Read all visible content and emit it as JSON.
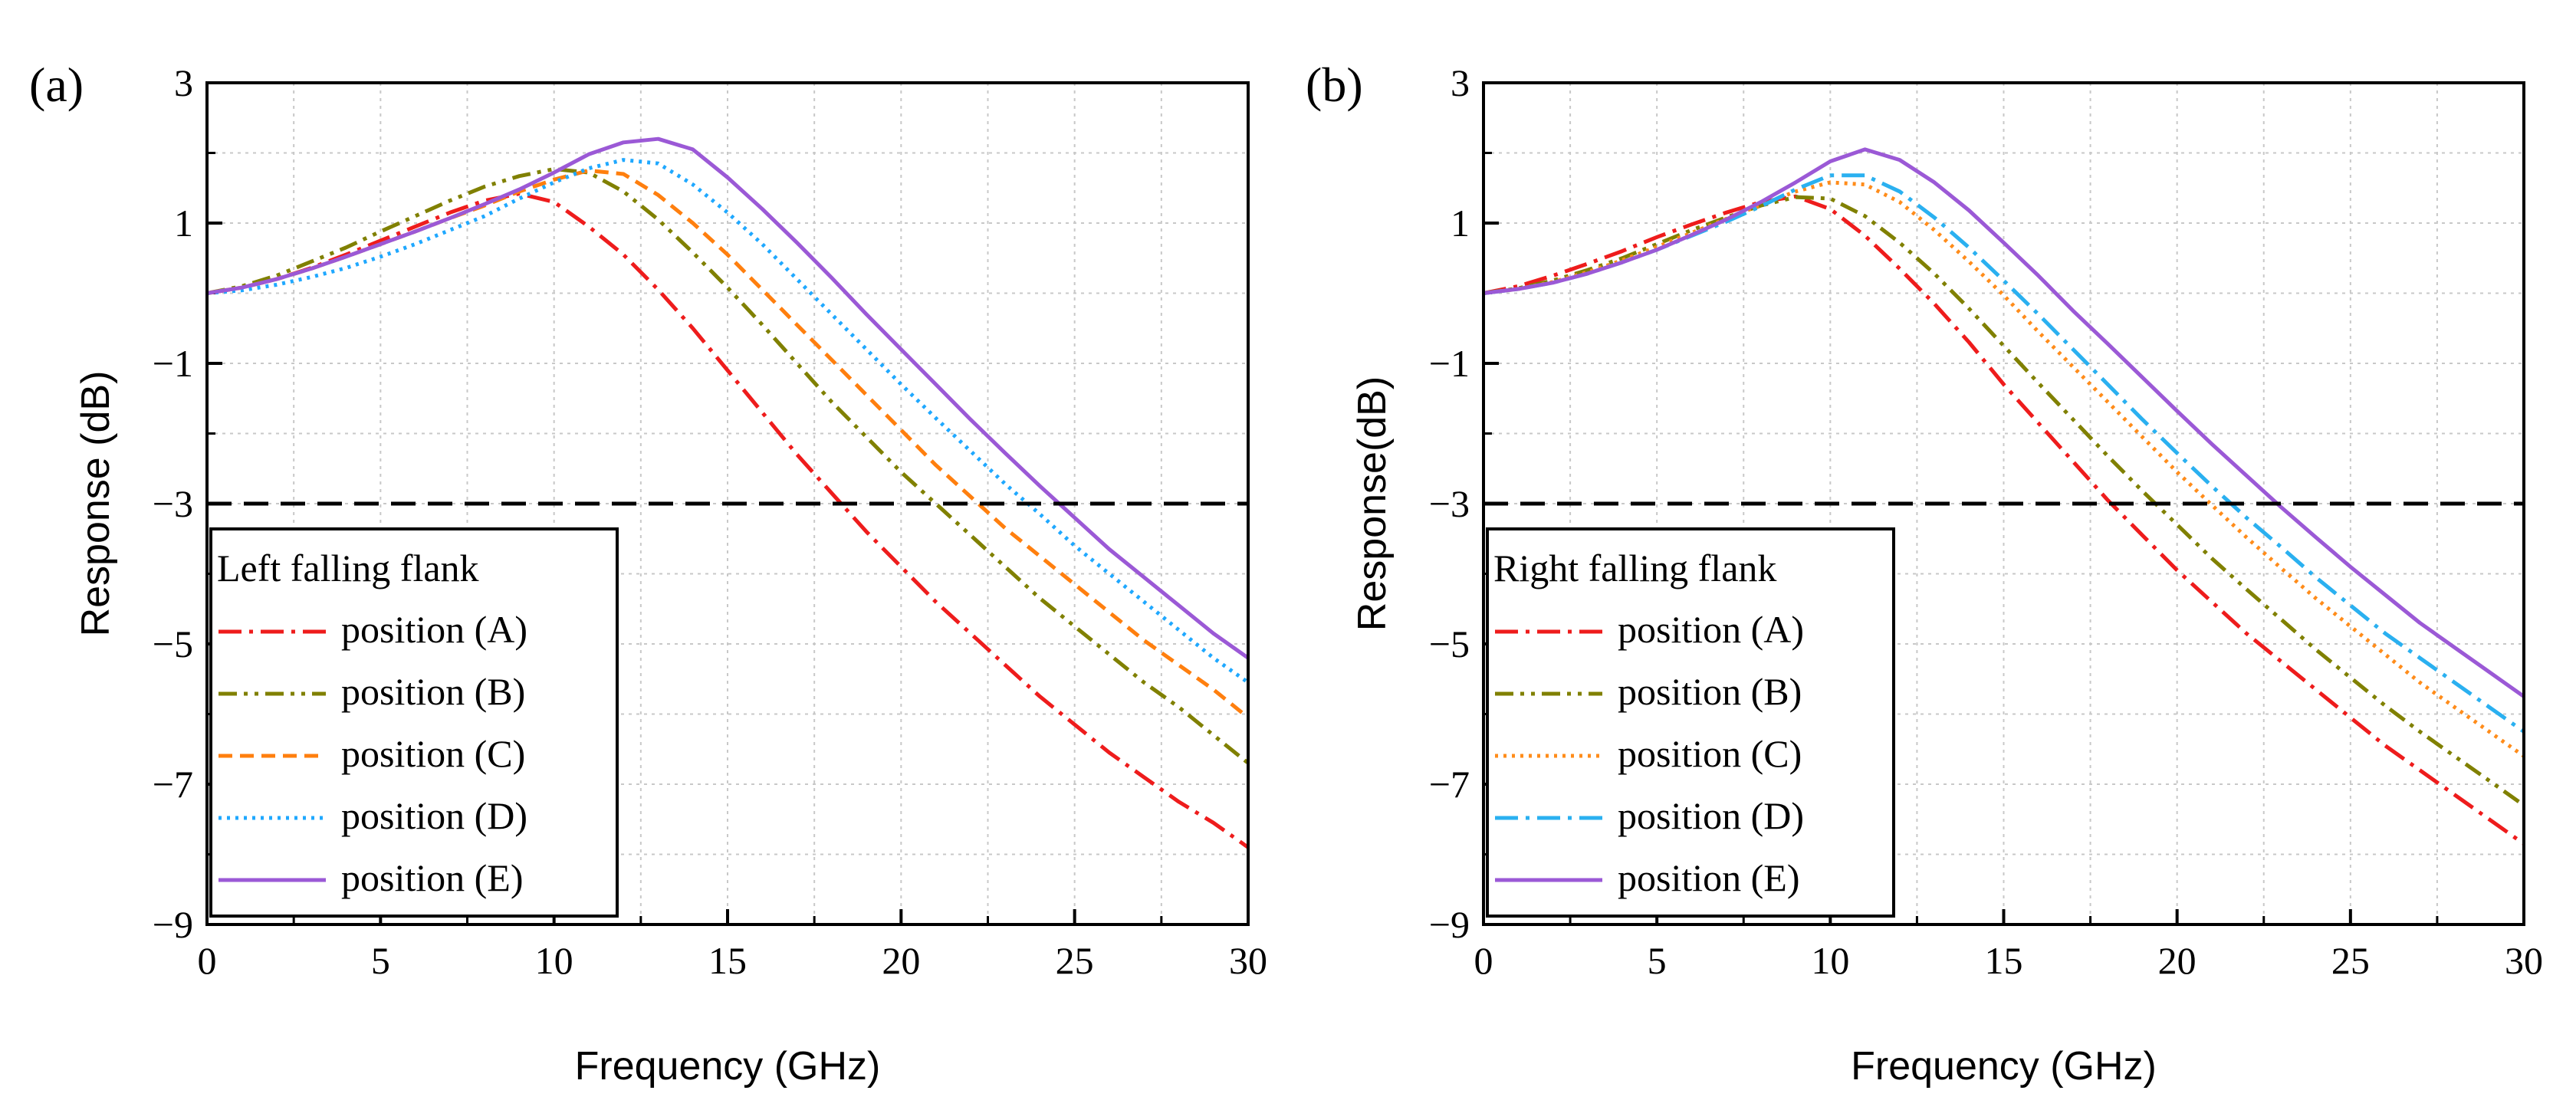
{
  "chart_data": [
    {
      "type": "line",
      "panel_label": "(a)",
      "xlabel": "Frequency (GHz)",
      "ylabel": "Response (dB)",
      "xlim": [
        0,
        30
      ],
      "ylim": [
        -9,
        3
      ],
      "xticks": [
        "0",
        "5",
        "10",
        "15",
        "20",
        "25",
        "30"
      ],
      "yticks": [
        "3",
        "1",
        "−1",
        "−3",
        "−5",
        "−7",
        "−9"
      ],
      "grid": true,
      "reference_line": {
        "y": -3,
        "style": "dashed",
        "color": "#000000"
      },
      "legend": {
        "title": "Left falling flank",
        "placement": "bottom-left"
      },
      "series": [
        {
          "name": "position (A)",
          "color": "#ee1c1c",
          "dash": "dashdot",
          "x": [
            0,
            1,
            2,
            3,
            4,
            5,
            6,
            7,
            8,
            9,
            10,
            11,
            12,
            13,
            14,
            15,
            16,
            17,
            18,
            19,
            20,
            21,
            22,
            23,
            24,
            25,
            26,
            27,
            28,
            29,
            30
          ],
          "y": [
            0.0,
            0.08,
            0.2,
            0.36,
            0.55,
            0.75,
            0.95,
            1.15,
            1.32,
            1.42,
            1.3,
            0.95,
            0.55,
            0.05,
            -0.5,
            -1.1,
            -1.7,
            -2.3,
            -2.85,
            -3.4,
            -3.9,
            -4.4,
            -4.85,
            -5.3,
            -5.75,
            -6.15,
            -6.55,
            -6.9,
            -7.25,
            -7.55,
            -7.9
          ]
        },
        {
          "name": "position (B)",
          "color": "#808000",
          "dash": "dashdotdot",
          "x": [
            0,
            1,
            2,
            3,
            4,
            5,
            6,
            7,
            8,
            9,
            10,
            11,
            12,
            13,
            14,
            15,
            16,
            17,
            18,
            19,
            20,
            21,
            22,
            23,
            24,
            25,
            26,
            27,
            28,
            29,
            30
          ],
          "y": [
            0.0,
            0.1,
            0.25,
            0.45,
            0.65,
            0.88,
            1.1,
            1.32,
            1.52,
            1.67,
            1.77,
            1.72,
            1.45,
            1.05,
            0.58,
            0.08,
            -0.45,
            -1.0,
            -1.55,
            -2.05,
            -2.55,
            -3.0,
            -3.45,
            -3.9,
            -4.35,
            -4.75,
            -5.15,
            -5.55,
            -5.9,
            -6.3,
            -6.7
          ]
        },
        {
          "name": "position (C)",
          "color": "#ff7f0e",
          "dash": "dashed",
          "x": [
            0,
            1,
            2,
            3,
            4,
            5,
            6,
            7,
            8,
            9,
            10,
            11,
            12,
            13,
            14,
            15,
            16,
            17,
            18,
            19,
            20,
            21,
            22,
            23,
            24,
            25,
            26,
            27,
            28,
            29,
            30
          ],
          "y": [
            0.0,
            0.08,
            0.2,
            0.35,
            0.52,
            0.7,
            0.88,
            1.07,
            1.25,
            1.45,
            1.62,
            1.75,
            1.7,
            1.4,
            1.0,
            0.55,
            0.05,
            -0.45,
            -0.95,
            -1.45,
            -1.95,
            -2.45,
            -2.9,
            -3.35,
            -3.75,
            -4.15,
            -4.55,
            -4.95,
            -5.3,
            -5.65,
            -6.05
          ]
        },
        {
          "name": "position (D)",
          "color": "#1fa8ff",
          "dash": "dotted",
          "x": [
            0,
            1,
            2,
            3,
            4,
            5,
            6,
            7,
            8,
            9,
            10,
            11,
            12,
            13,
            14,
            15,
            16,
            17,
            18,
            19,
            20,
            21,
            22,
            23,
            24,
            25,
            26,
            27,
            28,
            29,
            30
          ],
          "y": [
            0.0,
            0.04,
            0.12,
            0.23,
            0.36,
            0.52,
            0.7,
            0.9,
            1.1,
            1.35,
            1.58,
            1.78,
            1.9,
            1.85,
            1.55,
            1.15,
            0.7,
            0.2,
            -0.3,
            -0.8,
            -1.3,
            -1.78,
            -2.25,
            -2.72,
            -3.15,
            -3.6,
            -4.0,
            -4.4,
            -4.8,
            -5.2,
            -5.55
          ]
        },
        {
          "name": "position (E)",
          "color": "#9b59d6",
          "dash": "solid",
          "x": [
            0,
            1,
            2,
            3,
            4,
            5,
            6,
            7,
            8,
            9,
            10,
            11,
            12,
            13,
            14,
            15,
            16,
            17,
            18,
            19,
            20,
            21,
            22,
            23,
            24,
            25,
            26,
            27,
            28,
            29,
            30
          ],
          "y": [
            0.0,
            0.08,
            0.2,
            0.35,
            0.52,
            0.7,
            0.88,
            1.07,
            1.27,
            1.48,
            1.72,
            1.98,
            2.15,
            2.2,
            2.05,
            1.65,
            1.2,
            0.72,
            0.22,
            -0.3,
            -0.8,
            -1.3,
            -1.8,
            -2.28,
            -2.75,
            -3.2,
            -3.65,
            -4.05,
            -4.45,
            -4.85,
            -5.2
          ]
        }
      ]
    },
    {
      "type": "line",
      "panel_label": "(b)",
      "xlabel": "Frequency (GHz)",
      "ylabel": "Response(dB)",
      "xlim": [
        0,
        30
      ],
      "ylim": [
        -9,
        3
      ],
      "xticks": [
        "0",
        "5",
        "10",
        "15",
        "20",
        "25",
        "30"
      ],
      "yticks": [
        "3",
        "1",
        "−1",
        "−3",
        "−5",
        "−7",
        "−9"
      ],
      "grid": true,
      "reference_line": {
        "y": -3,
        "style": "dashed",
        "color": "#000000"
      },
      "legend": {
        "title": "Right falling flank",
        "placement": "bottom-left"
      },
      "series": [
        {
          "name": "position (A)",
          "color": "#ee1c1c",
          "dash": "dashdot",
          "x": [
            0,
            1,
            2,
            3,
            4,
            5,
            6,
            7,
            8,
            9,
            10,
            11,
            12,
            13,
            14,
            15,
            16,
            17,
            18,
            19,
            20,
            21,
            22,
            23,
            24,
            25,
            26,
            27,
            28,
            29,
            30
          ],
          "y": [
            0.0,
            0.1,
            0.25,
            0.42,
            0.6,
            0.8,
            0.98,
            1.15,
            1.3,
            1.38,
            1.2,
            0.82,
            0.35,
            -0.15,
            -0.7,
            -1.3,
            -1.85,
            -2.4,
            -2.95,
            -3.45,
            -3.95,
            -4.4,
            -4.85,
            -5.25,
            -5.65,
            -6.05,
            -6.45,
            -6.8,
            -7.15,
            -7.5,
            -7.85
          ]
        },
        {
          "name": "position (B)",
          "color": "#808000",
          "dash": "dashdotdot",
          "x": [
            0,
            1,
            2,
            3,
            4,
            5,
            6,
            7,
            8,
            9,
            10,
            11,
            12,
            13,
            14,
            15,
            16,
            17,
            18,
            19,
            20,
            21,
            22,
            23,
            24,
            25,
            26,
            27,
            28,
            29,
            30
          ],
          "y": [
            0.0,
            0.07,
            0.18,
            0.33,
            0.5,
            0.7,
            0.9,
            1.08,
            1.25,
            1.37,
            1.35,
            1.1,
            0.72,
            0.28,
            -0.22,
            -0.75,
            -1.28,
            -1.8,
            -2.32,
            -2.82,
            -3.3,
            -3.78,
            -4.22,
            -4.65,
            -5.08,
            -5.48,
            -5.88,
            -6.25,
            -6.6,
            -6.95,
            -7.3
          ]
        },
        {
          "name": "position (C)",
          "color": "#ff8c1a",
          "dash": "dotted",
          "x": [
            0,
            1,
            2,
            3,
            4,
            5,
            6,
            7,
            8,
            9,
            10,
            11,
            12,
            13,
            14,
            15,
            16,
            17,
            18,
            19,
            20,
            21,
            22,
            23,
            24,
            25,
            26,
            27,
            28,
            29,
            30
          ],
          "y": [
            0.0,
            0.06,
            0.16,
            0.3,
            0.47,
            0.66,
            0.86,
            1.06,
            1.26,
            1.45,
            1.58,
            1.55,
            1.3,
            0.9,
            0.45,
            -0.03,
            -0.55,
            -1.05,
            -1.55,
            -2.05,
            -2.55,
            -3.02,
            -3.48,
            -3.92,
            -4.35,
            -4.75,
            -5.15,
            -5.55,
            -5.9,
            -6.25,
            -6.6
          ]
        },
        {
          "name": "position (D)",
          "color": "#2ab0f0",
          "dash": "dashdot",
          "x": [
            0,
            1,
            2,
            3,
            4,
            5,
            6,
            7,
            8,
            9,
            10,
            11,
            12,
            13,
            14,
            15,
            16,
            17,
            18,
            19,
            20,
            21,
            22,
            23,
            24,
            25,
            26,
            27,
            28,
            29,
            30
          ],
          "y": [
            0.0,
            0.06,
            0.15,
            0.28,
            0.44,
            0.62,
            0.82,
            1.02,
            1.24,
            1.48,
            1.68,
            1.68,
            1.45,
            1.08,
            0.65,
            0.18,
            -0.3,
            -0.8,
            -1.3,
            -1.8,
            -2.28,
            -2.75,
            -3.2,
            -3.62,
            -4.05,
            -4.45,
            -4.85,
            -5.2,
            -5.55,
            -5.9,
            -6.25
          ]
        },
        {
          "name": "position (E)",
          "color": "#9b59d6",
          "dash": "solid",
          "x": [
            0,
            1,
            2,
            3,
            4,
            5,
            6,
            7,
            8,
            9,
            10,
            11,
            12,
            13,
            14,
            15,
            16,
            17,
            18,
            19,
            20,
            21,
            22,
            23,
            24,
            25,
            26,
            27,
            28,
            29,
            30
          ],
          "y": [
            0.0,
            0.06,
            0.15,
            0.28,
            0.44,
            0.62,
            0.83,
            1.05,
            1.3,
            1.58,
            1.88,
            2.05,
            1.9,
            1.58,
            1.18,
            0.72,
            0.25,
            -0.25,
            -0.72,
            -1.2,
            -1.68,
            -2.15,
            -2.6,
            -3.05,
            -3.48,
            -3.9,
            -4.3,
            -4.7,
            -5.05,
            -5.4,
            -5.75
          ]
        }
      ]
    }
  ]
}
